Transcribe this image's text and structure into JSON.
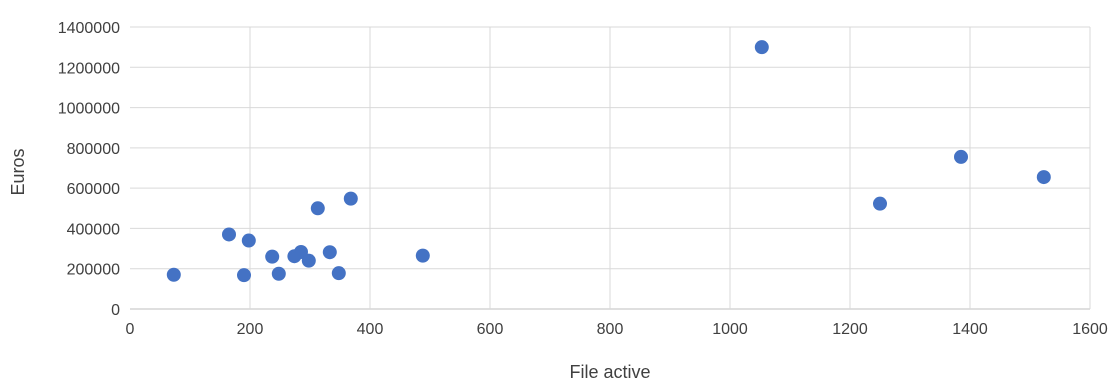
{
  "chart_data": {
    "type": "scatter",
    "xlabel": "File active",
    "ylabel": "Euros",
    "xlim": [
      0,
      1600
    ],
    "ylim": [
      0,
      1400000
    ],
    "x_ticks": [
      0,
      200,
      400,
      600,
      800,
      1000,
      1200,
      1400,
      1600
    ],
    "y_ticks": [
      0,
      200000,
      400000,
      600000,
      800000,
      1000000,
      1200000,
      1400000
    ],
    "grid": true,
    "marker_color": "#4472c4",
    "points": [
      {
        "x": 73,
        "y": 170000
      },
      {
        "x": 165,
        "y": 370000
      },
      {
        "x": 190,
        "y": 168000
      },
      {
        "x": 198,
        "y": 340000
      },
      {
        "x": 237,
        "y": 260000
      },
      {
        "x": 248,
        "y": 175000
      },
      {
        "x": 274,
        "y": 262000
      },
      {
        "x": 285,
        "y": 283000
      },
      {
        "x": 298,
        "y": 240000
      },
      {
        "x": 313,
        "y": 500000
      },
      {
        "x": 333,
        "y": 282000
      },
      {
        "x": 348,
        "y": 178000
      },
      {
        "x": 368,
        "y": 548000
      },
      {
        "x": 488,
        "y": 265000
      },
      {
        "x": 1053,
        "y": 1300000
      },
      {
        "x": 1250,
        "y": 523000
      },
      {
        "x": 1385,
        "y": 755000
      },
      {
        "x": 1523,
        "y": 655000
      }
    ]
  }
}
